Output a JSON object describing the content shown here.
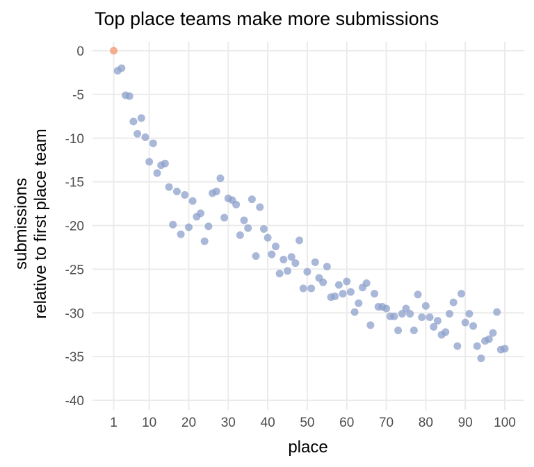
{
  "chart_data": {
    "type": "scatter",
    "title": "Top place teams make more submissions",
    "xlabel": "place",
    "ylabel": [
      "submissions",
      "relative to first place team"
    ],
    "xlim": [
      1,
      100
    ],
    "ylim": [
      -40,
      0
    ],
    "x_ticks": [
      1,
      10,
      20,
      30,
      40,
      50,
      60,
      70,
      80,
      90,
      100
    ],
    "y_ticks": [
      0,
      -5,
      -10,
      -15,
      -20,
      -25,
      -30,
      -35,
      -40
    ],
    "grid": true,
    "legend": "none",
    "colors": {
      "highlight": "#f4a582",
      "points": "#8c9fcb"
    },
    "highlight": {
      "x": 1,
      "y": 0
    },
    "points": [
      [
        2,
        -2.3
      ],
      [
        3,
        -2
      ],
      [
        4,
        -5.1
      ],
      [
        5,
        -5.2
      ],
      [
        6,
        -8.1
      ],
      [
        7,
        -9.5
      ],
      [
        8,
        -7.7
      ],
      [
        9,
        -9.9
      ],
      [
        10,
        -12.7
      ],
      [
        11,
        -10.6
      ],
      [
        12,
        -14
      ],
      [
        13,
        -13.1
      ],
      [
        14,
        -12.9
      ],
      [
        15,
        -15.6
      ],
      [
        16,
        -19.9
      ],
      [
        17,
        -16.1
      ],
      [
        18,
        -21
      ],
      [
        19,
        -16.5
      ],
      [
        20,
        -20.2
      ],
      [
        21,
        -17.2
      ],
      [
        22,
        -19
      ],
      [
        23,
        -18.6
      ],
      [
        24,
        -21.8
      ],
      [
        25,
        -20.1
      ],
      [
        26,
        -16.3
      ],
      [
        27,
        -16.1
      ],
      [
        28,
        -14.6
      ],
      [
        29,
        -19.1
      ],
      [
        30,
        -16.9
      ],
      [
        31,
        -17.1
      ],
      [
        32,
        -17.6
      ],
      [
        33,
        -21.1
      ],
      [
        34,
        -19.4
      ],
      [
        35,
        -20.3
      ],
      [
        36,
        -17
      ],
      [
        37,
        -23.5
      ],
      [
        38,
        -17.9
      ],
      [
        39,
        -20.4
      ],
      [
        40,
        -21.4
      ],
      [
        41,
        -23.3
      ],
      [
        42,
        -22.4
      ],
      [
        43,
        -25.5
      ],
      [
        44,
        -23.9
      ],
      [
        45,
        -25.2
      ],
      [
        46,
        -23.6
      ],
      [
        47,
        -24.3
      ],
      [
        48,
        -21.7
      ],
      [
        49,
        -27.2
      ],
      [
        50,
        -25.3
      ],
      [
        51,
        -27.2
      ],
      [
        52,
        -24.2
      ],
      [
        53,
        -26
      ],
      [
        54,
        -26.5
      ],
      [
        55,
        -24.7
      ],
      [
        56,
        -28.2
      ],
      [
        57,
        -28.1
      ],
      [
        58,
        -26.8
      ],
      [
        59,
        -27.8
      ],
      [
        60,
        -26.4
      ],
      [
        61,
        -27.6
      ],
      [
        62,
        -29.9
      ],
      [
        63,
        -28.9
      ],
      [
        64,
        -27.1
      ],
      [
        65,
        -26.6
      ],
      [
        66,
        -31.4
      ],
      [
        67,
        -27.8
      ],
      [
        68,
        -29.3
      ],
      [
        69,
        -29.3
      ],
      [
        70,
        -29.5
      ],
      [
        71,
        -30.4
      ],
      [
        72,
        -30.4
      ],
      [
        73,
        -32
      ],
      [
        74,
        -30.1
      ],
      [
        75,
        -29.5
      ],
      [
        76,
        -30.1
      ],
      [
        77,
        -32
      ],
      [
        78,
        -27.9
      ],
      [
        79,
        -30.5
      ],
      [
        80,
        -29.2
      ],
      [
        81,
        -30.5
      ],
      [
        82,
        -31.6
      ],
      [
        83,
        -30.9
      ],
      [
        84,
        -32.5
      ],
      [
        85,
        -32.2
      ],
      [
        86,
        -30.1
      ],
      [
        87,
        -28.8
      ],
      [
        88,
        -33.8
      ],
      [
        89,
        -27.8
      ],
      [
        90,
        -31.1
      ],
      [
        91,
        -30.1
      ],
      [
        92,
        -31.5
      ],
      [
        93,
        -33.8
      ],
      [
        94,
        -35.2
      ],
      [
        95,
        -33.2
      ],
      [
        96,
        -33
      ],
      [
        97,
        -32.3
      ],
      [
        98,
        -29.9
      ],
      [
        99,
        -34.2
      ],
      [
        100,
        -34.1
      ]
    ]
  }
}
